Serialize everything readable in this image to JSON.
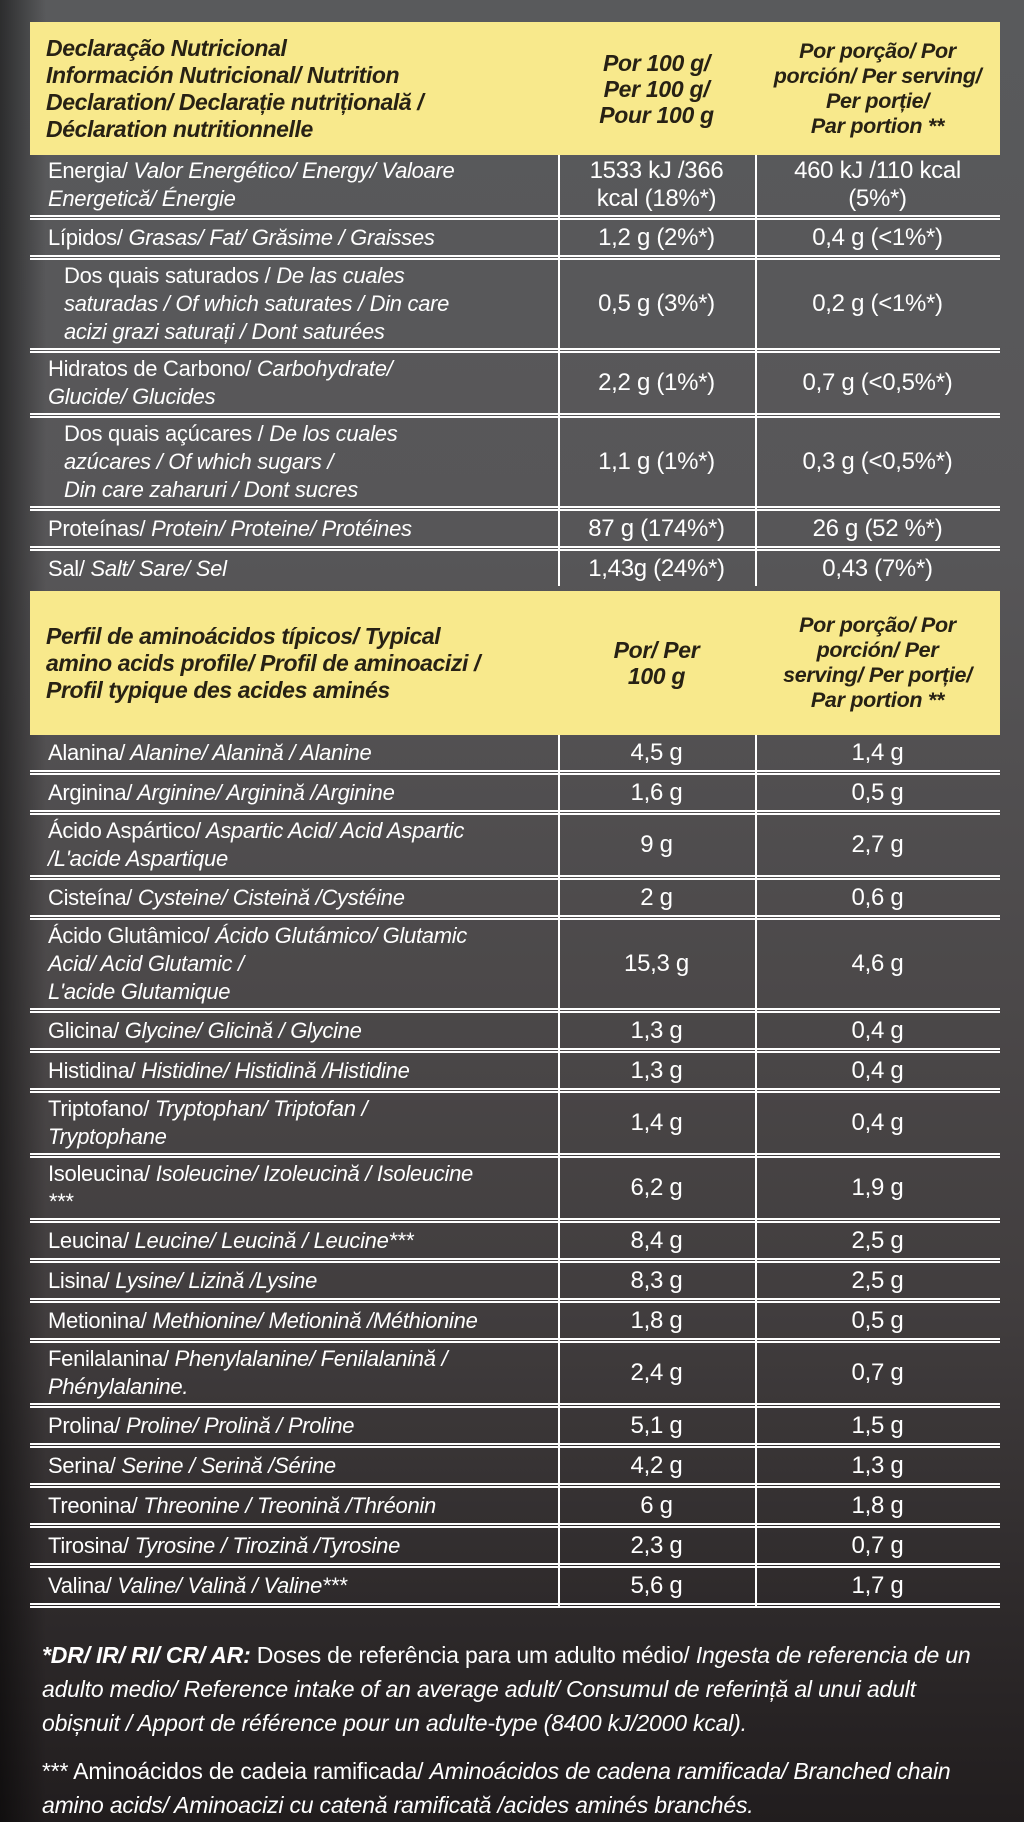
{
  "header1": {
    "title": "Declaração Nutricional\nInformación Nutricional/ Nutrition\nDeclaration/ Declarație nutrițională /\nDéclaration nutritionnelle",
    "per100": "Por 100 g/\nPer 100 g/\nPour 100 g",
    "portion": "Por porção/ Por\nporción/ Per serving/\nPer porție/\nPar portion **"
  },
  "header2": {
    "title": "Perfil de aminoácidos típicos/ Typical\namino acids profile/ Profil de aminoacizi /\nProfil typique des acides aminés",
    "per100": "Por/ Per\n100 g",
    "portion": "Por porção/ Por\nporción/ Per\nserving/ Per porție/\nPar portion **"
  },
  "section1": {
    "rows": [
      {
        "lead": "Energia/",
        "rest": " Valor Energético/ Energy/ Valoare\nEnergetică/ Énergie",
        "per100": "1533 kJ /366 kcal (18%*)",
        "portion": "460 kJ /110  kcal (5%*)",
        "indent": false
      },
      {
        "lead": "Lípidos/",
        "rest": " Grasas/ Fat/ Grăsime / Graisses",
        "per100": "1,2 g (2%*)",
        "portion": "0,4 g (<1%*)",
        "indent": false
      },
      {
        "lead": "Dos quais saturados /",
        "rest": " De las cuales\nsaturadas / Of which saturates / Din care\nacizi grazi saturați / Dont saturées",
        "per100": "0,5 g (3%*)",
        "portion": "0,2 g (<1%*)",
        "indent": true
      },
      {
        "lead": "Hidratos de Carbono/",
        "rest": " Carbohydrate/\nGlucide/ Glucides",
        "per100": "2,2 g (1%*)",
        "portion": "0,7 g (<0,5%*)",
        "indent": false
      },
      {
        "lead": "Dos quais açúcares /",
        "rest": " De los cuales\nazúcares / Of which sugars /\nDin care zaharuri / Dont sucres",
        "per100": "1,1 g (1%*)",
        "portion": "0,3 g (<0,5%*)",
        "indent": true
      },
      {
        "lead": "Proteínas/",
        "rest": " Protein/ Proteine/ Protéines",
        "per100": "87 g (174%*)",
        "portion": "26 g (52 %*)",
        "indent": false
      },
      {
        "lead": "Sal/",
        "rest": " Salt/ Sare/ Sel",
        "per100": "1,43g (24%*)",
        "portion": "0,43 (7%*)",
        "indent": false
      }
    ]
  },
  "section2": {
    "rows": [
      {
        "lead": "Alanina/",
        "rest": " Alanine/ Alanină / Alanine",
        "per100": "4,5 g",
        "portion": "1,4 g",
        "indent": false
      },
      {
        "lead": "Arginina/",
        "rest": " Arginine/ Arginină /Arginine",
        "per100": "1,6 g",
        "portion": "0,5 g",
        "indent": false
      },
      {
        "lead": "Ácido Aspártico/",
        "rest": " Aspartic Acid/ Acid Aspartic\n/L'acide Aspartique",
        "per100": "9 g",
        "portion": "2,7 g",
        "indent": false
      },
      {
        "lead": "Cisteína/",
        "rest": " Cysteine/ Cisteină /Cystéine",
        "per100": "2 g",
        "portion": "0,6 g",
        "indent": false
      },
      {
        "lead": "Ácido Glutâmico/",
        "rest": " Ácido Glutámico/ Glutamic\nAcid/ Acid Glutamic /\nL'acide Glutamique",
        "per100": "15,3 g",
        "portion": "4,6 g",
        "indent": false
      },
      {
        "lead": "Glicina/",
        "rest": " Glycine/ Glicină / Glycine",
        "per100": "1,3 g",
        "portion": "0,4 g",
        "indent": false
      },
      {
        "lead": "Histidina/",
        "rest": " Histidine/ Histidină /Histidine",
        "per100": "1,3 g",
        "portion": "0,4 g",
        "indent": false
      },
      {
        "lead": "Triptofano/",
        "rest": " Tryptophan/ Triptofan /\nTryptophane",
        "per100": "1,4 g",
        "portion": "0,4 g",
        "indent": false
      },
      {
        "lead": "Isoleucina/",
        "rest": " Isoleucine/ Izoleucină / Isoleucine\n***",
        "per100": "6,2 g",
        "portion": "1,9 g",
        "indent": false
      },
      {
        "lead": "Leucina/",
        "rest": " Leucine/ Leucină / Leucine***",
        "per100": "8,4 g",
        "portion": "2,5 g",
        "indent": false
      },
      {
        "lead": "Lisina/",
        "rest": " Lysine/ Lizină /Lysine",
        "per100": "8,3 g",
        "portion": "2,5 g",
        "indent": false
      },
      {
        "lead": "Metionina/",
        "rest": " Methionine/ Metionină /Méthionine",
        "per100": "1,8 g",
        "portion": "0,5 g",
        "indent": false
      },
      {
        "lead": "Fenilalanina/",
        "rest": " Phenylalanine/ Fenilalanină /\nPhénylalanine.",
        "per100": "2,4 g",
        "portion": "0,7 g",
        "indent": false
      },
      {
        "lead": "Prolina/",
        "rest": " Proline/ Prolină / Proline",
        "per100": "5,1 g",
        "portion": "1,5 g",
        "indent": false
      },
      {
        "lead": "Serina/",
        "rest": " Serine / Serină /Sérine",
        "per100": "4,2 g",
        "portion": "1,3 g",
        "indent": false
      },
      {
        "lead": "Treonina/",
        "rest": " Threonine / Treonină /Thréonin",
        "per100": "6 g",
        "portion": "1,8 g",
        "indent": false
      },
      {
        "lead": "Tirosina/",
        "rest": " Tyrosine / Tirozină /Tyrosine",
        "per100": "2,3 g",
        "portion": "0,7 g",
        "indent": false
      },
      {
        "lead": "Valina/",
        "rest": " Valine/ Valină / Valine***",
        "per100": "5,6 g",
        "portion": "1,7 g",
        "indent": false
      }
    ]
  },
  "footnotes": {
    "f1_lead": "*DR/ IR/ RI/ CR/ AR: ",
    "f1_normal": "Doses de referência para um adulto médio/ ",
    "f1_italic": "Ingesta de referencia de un adulto medio/ Reference intake of an average adult/ Consumul de referință al unui adult obișnuit / Apport de référence pour un adulte-type (8400 kJ/2000 kcal).",
    "f2_lead": "*** Aminoácidos de cadeia ramificada/ ",
    "f2_italic": "Aminoácidos de cadena ramificada/ Branched chain amino acids/ Aminoacizi cu catenă ramificată /acides aminés branchés."
  },
  "colors": {
    "header_background": "#F8E98C",
    "header_text": "#272114",
    "table_lines": "#ffffff",
    "body_text": "#ffffff"
  }
}
